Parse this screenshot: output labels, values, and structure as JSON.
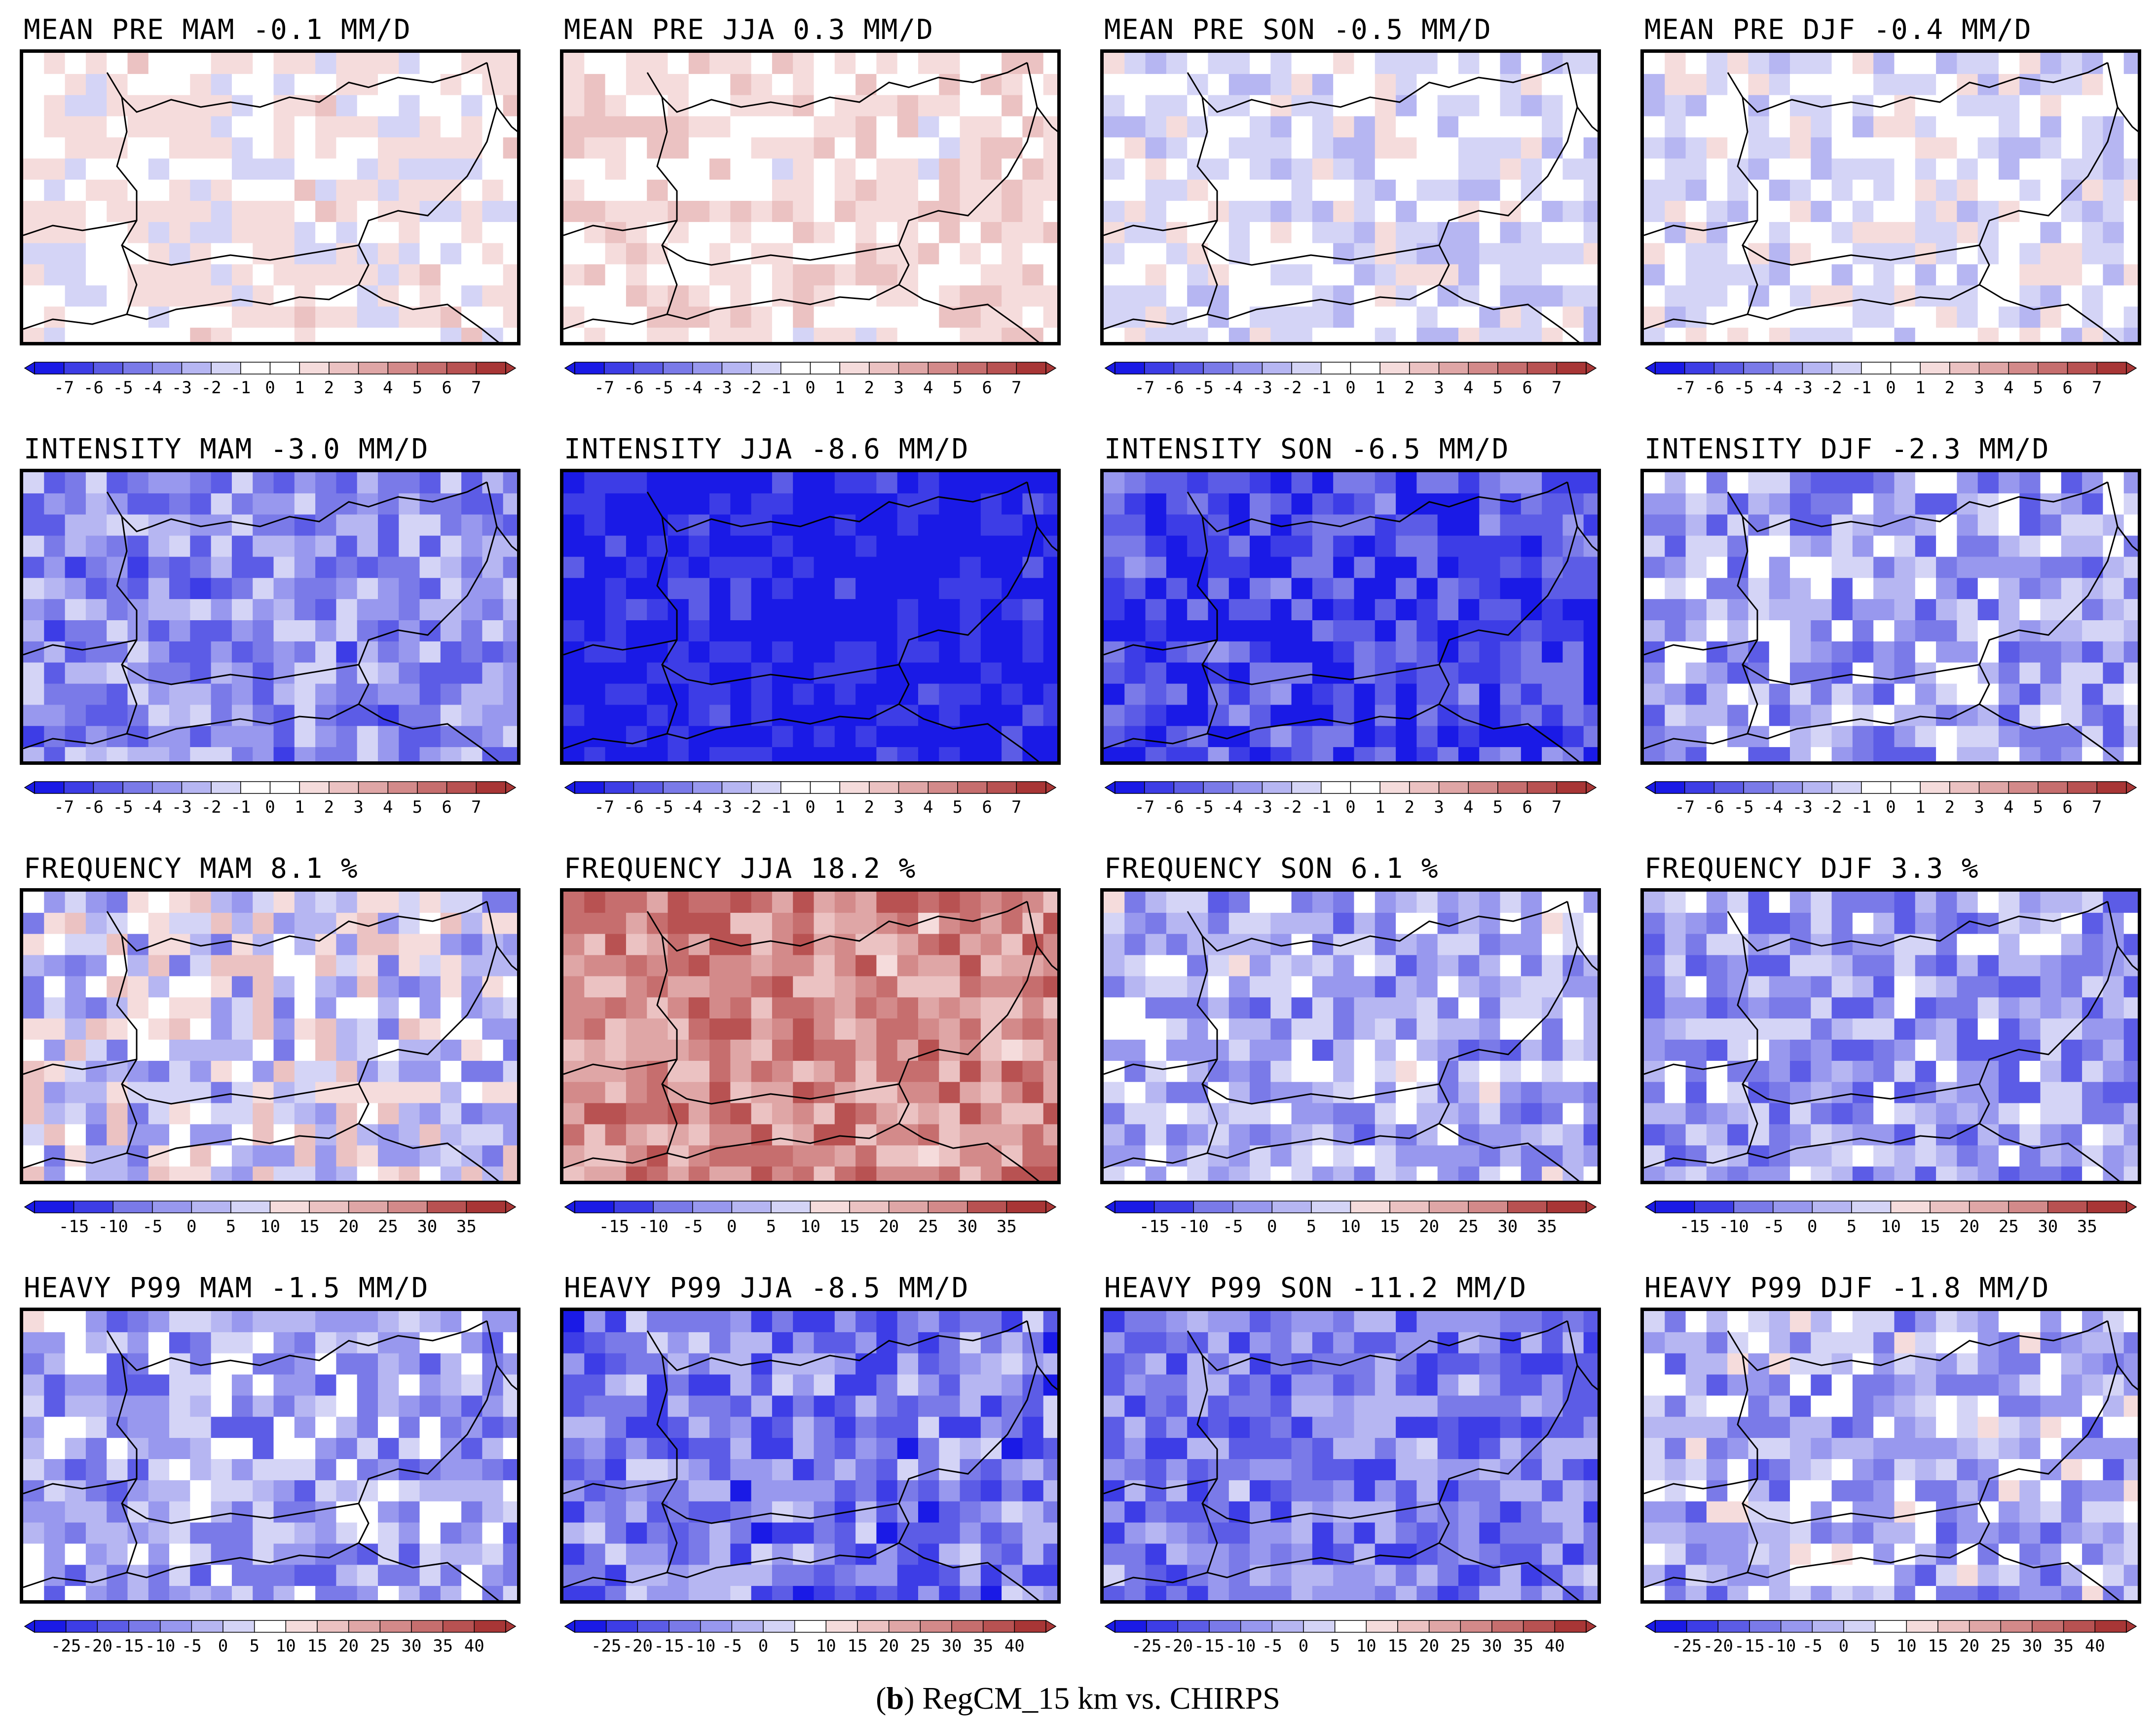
{
  "figure": {
    "caption_label": "b",
    "caption_text": "RegCM_15 km vs. CHIRPS"
  },
  "colors": {
    "scale": [
      "#1a1ae6",
      "#3d3de6",
      "#5c5ce6",
      "#7a7ae8",
      "#9898ee",
      "#b6b6f2",
      "#d4d4f6",
      "#ffffff",
      "#f5dcdc",
      "#ebc2c2",
      "#dfa6a6",
      "#d38a8a",
      "#c66e6e",
      "#b85252",
      "#a83636"
    ],
    "border": "#000000"
  },
  "chart_data": [
    {
      "type": "heatmap",
      "row": "MEAN PRE",
      "title": "MEAN PRE MAM -0.1 mm/d",
      "variable": "MEAN PRE",
      "season": "MAM",
      "area_mean": -0.1,
      "units": "mm/d",
      "colorbar": [
        "-7",
        "-6",
        "-5",
        "-4",
        "-3",
        "-2",
        "-1",
        "0",
        "1",
        "2",
        "3",
        "4",
        "5",
        "6",
        "7"
      ],
      "dominant": 0.05,
      "spread": 0.18,
      "seed": 3
    },
    {
      "type": "heatmap",
      "row": "MEAN PRE",
      "title": "MEAN PRE JJA 0.3 mm/d",
      "variable": "MEAN PRE",
      "season": "JJA",
      "area_mean": 0.3,
      "units": "mm/d",
      "colorbar": [
        "-7",
        "-6",
        "-5",
        "-4",
        "-3",
        "-2",
        "-1",
        "0",
        "1",
        "2",
        "3",
        "4",
        "5",
        "6",
        "7"
      ],
      "dominant": 0.12,
      "spread": 0.2,
      "seed": 7
    },
    {
      "type": "heatmap",
      "row": "MEAN PRE",
      "title": "MEAN PRE SON -0.5 mm/d",
      "variable": "MEAN PRE",
      "season": "SON",
      "area_mean": -0.5,
      "units": "mm/d",
      "colorbar": [
        "-7",
        "-6",
        "-5",
        "-4",
        "-3",
        "-2",
        "-1",
        "0",
        "1",
        "2",
        "3",
        "4",
        "5",
        "6",
        "7"
      ],
      "dominant": -0.07,
      "spread": 0.2,
      "seed": 11
    },
    {
      "type": "heatmap",
      "row": "MEAN PRE",
      "title": "MEAN PRE DJF -0.4 mm/d",
      "variable": "MEAN PRE",
      "season": "DJF",
      "area_mean": -0.4,
      "units": "mm/d",
      "colorbar": [
        "-7",
        "-6",
        "-5",
        "-4",
        "-3",
        "-2",
        "-1",
        "0",
        "1",
        "2",
        "3",
        "4",
        "5",
        "6",
        "7"
      ],
      "dominant": -0.06,
      "spread": 0.2,
      "seed": 13
    },
    {
      "type": "heatmap",
      "row": "INTENSITY",
      "title": "INTENSITY MAM -3.0 mm/d",
      "variable": "INTENSITY",
      "season": "MAM",
      "area_mean": -3.0,
      "units": "mm/d",
      "colorbar": [
        "-7",
        "-6",
        "-5",
        "-4",
        "-3",
        "-2",
        "-1",
        "0",
        "1",
        "2",
        "3",
        "4",
        "5",
        "6",
        "7"
      ],
      "dominant": -0.45,
      "spread": 0.35,
      "seed": 17
    },
    {
      "type": "heatmap",
      "row": "INTENSITY",
      "title": "INTENSITY JJA -8.6 mm/d",
      "variable": "INTENSITY",
      "season": "JJA",
      "area_mean": -8.6,
      "units": "mm/d",
      "colorbar": [
        "-7",
        "-6",
        "-5",
        "-4",
        "-3",
        "-2",
        "-1",
        "0",
        "1",
        "2",
        "3",
        "4",
        "5",
        "6",
        "7"
      ],
      "dominant": -1.0,
      "spread": 0.25,
      "seed": 19
    },
    {
      "type": "heatmap",
      "row": "INTENSITY",
      "title": "INTENSITY SON -6.5 mm/d",
      "variable": "INTENSITY",
      "season": "SON",
      "area_mean": -6.5,
      "units": "mm/d",
      "colorbar": [
        "-7",
        "-6",
        "-5",
        "-4",
        "-3",
        "-2",
        "-1",
        "0",
        "1",
        "2",
        "3",
        "4",
        "5",
        "6",
        "7"
      ],
      "dominant": -0.8,
      "spread": 0.35,
      "seed": 23
    },
    {
      "type": "heatmap",
      "row": "INTENSITY",
      "title": "INTENSITY DJF -2.3 mm/d",
      "variable": "INTENSITY",
      "season": "DJF",
      "area_mean": -2.3,
      "units": "mm/d",
      "colorbar": [
        "-7",
        "-6",
        "-5",
        "-4",
        "-3",
        "-2",
        "-1",
        "0",
        "1",
        "2",
        "3",
        "4",
        "5",
        "6",
        "7"
      ],
      "dominant": -0.35,
      "spread": 0.4,
      "seed": 29
    },
    {
      "type": "heatmap",
      "row": "FREQUENCY",
      "title": "FREQUENCY MAM 8.1 %",
      "variable": "FREQUENCY",
      "season": "MAM",
      "area_mean": 8.1,
      "units": "%",
      "colorbar": [
        "-15",
        "-10",
        "-5",
        "0",
        "5",
        "10",
        "15",
        "20",
        "25",
        "30",
        "35"
      ],
      "dominant": -0.12,
      "spread": 0.45,
      "seed": 31
    },
    {
      "type": "heatmap",
      "row": "FREQUENCY",
      "title": "FREQUENCY JJA 18.2 %",
      "variable": "FREQUENCY",
      "season": "JJA",
      "area_mean": 18.2,
      "units": "%",
      "colorbar": [
        "-15",
        "-10",
        "-5",
        "0",
        "5",
        "10",
        "15",
        "20",
        "25",
        "30",
        "35"
      ],
      "dominant": 0.55,
      "spread": 0.35,
      "seed": 37
    },
    {
      "type": "heatmap",
      "row": "FREQUENCY",
      "title": "FREQUENCY SON 6.1 %",
      "variable": "FREQUENCY",
      "season": "SON",
      "area_mean": 6.1,
      "units": "%",
      "colorbar": [
        "-15",
        "-10",
        "-5",
        "0",
        "5",
        "10",
        "15",
        "20",
        "25",
        "30",
        "35"
      ],
      "dominant": -0.3,
      "spread": 0.4,
      "seed": 41
    },
    {
      "type": "heatmap",
      "row": "FREQUENCY",
      "title": "FREQUENCY DJF 3.3 %",
      "variable": "FREQUENCY",
      "season": "DJF",
      "area_mean": 3.3,
      "units": "%",
      "colorbar": [
        "-15",
        "-10",
        "-5",
        "0",
        "5",
        "10",
        "15",
        "20",
        "25",
        "30",
        "35"
      ],
      "dominant": -0.38,
      "spread": 0.4,
      "seed": 43
    },
    {
      "type": "heatmap",
      "row": "HEAVY P99",
      "title": "HEAVY P99 MAM -1.5 mm/d",
      "variable": "HEAVY P99",
      "season": "MAM",
      "area_mean": -1.5,
      "units": "mm/d",
      "colorbar": [
        "-25",
        "-20",
        "-15",
        "-10",
        "-5",
        "0",
        "5",
        "10",
        "15",
        "20",
        "25",
        "30",
        "35",
        "40"
      ],
      "dominant": -0.32,
      "spread": 0.4,
      "seed": 47
    },
    {
      "type": "heatmap",
      "row": "HEAVY P99",
      "title": "HEAVY P99 JJA -8.5 mm/d",
      "variable": "HEAVY P99",
      "season": "JJA",
      "area_mean": -8.5,
      "units": "mm/d",
      "colorbar": [
        "-25",
        "-20",
        "-15",
        "-10",
        "-5",
        "0",
        "5",
        "10",
        "15",
        "20",
        "25",
        "30",
        "35",
        "40"
      ],
      "dominant": -0.55,
      "spread": 0.4,
      "seed": 53
    },
    {
      "type": "heatmap",
      "row": "HEAVY P99",
      "title": "HEAVY P99 SON -11.2 mm/d",
      "variable": "HEAVY P99",
      "season": "SON",
      "area_mean": -11.2,
      "units": "mm/d",
      "colorbar": [
        "-25",
        "-20",
        "-15",
        "-10",
        "-5",
        "0",
        "5",
        "10",
        "15",
        "20",
        "25",
        "30",
        "35",
        "40"
      ],
      "dominant": -0.55,
      "spread": 0.35,
      "seed": 59
    },
    {
      "type": "heatmap",
      "row": "HEAVY P99",
      "title": "HEAVY P99 DJF -1.8 mm/d",
      "variable": "HEAVY P99",
      "season": "DJF",
      "area_mean": -1.8,
      "units": "mm/d",
      "colorbar": [
        "-25",
        "-20",
        "-15",
        "-10",
        "-5",
        "0",
        "5",
        "10",
        "15",
        "20",
        "25",
        "30",
        "35",
        "40"
      ],
      "dominant": -0.3,
      "spread": 0.4,
      "seed": 61
    }
  ]
}
